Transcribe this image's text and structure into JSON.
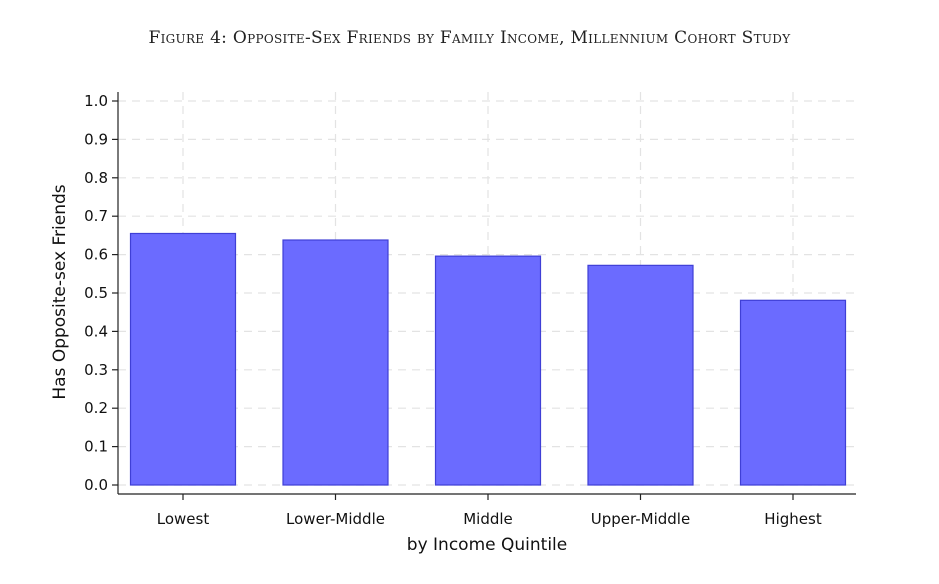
{
  "figure": {
    "title": "Figure 4: Opposite-Sex Friends by Family Income, Millennium Cohort Study"
  },
  "chart_data": {
    "type": "bar",
    "title": "Figure 4: Opposite-Sex Friends by Family Income, Millennium Cohort Study",
    "xlabel": "by Income Quintile",
    "ylabel": "Has Opposite-sex Friends",
    "categories": [
      "Lowest",
      "Lower-Middle",
      "Middle",
      "Upper-Middle",
      "Highest"
    ],
    "values": [
      0.655,
      0.638,
      0.596,
      0.572,
      0.481
    ],
    "ylim": [
      0,
      1.0
    ],
    "yticks": [
      "0.0",
      "0.1",
      "0.2",
      "0.3",
      "0.4",
      "0.5",
      "0.6",
      "0.7",
      "0.8",
      "0.9",
      "1.0"
    ],
    "grid": true,
    "bar_color": "#6b6bff",
    "bar_edge_color": "#3f3fd6"
  }
}
